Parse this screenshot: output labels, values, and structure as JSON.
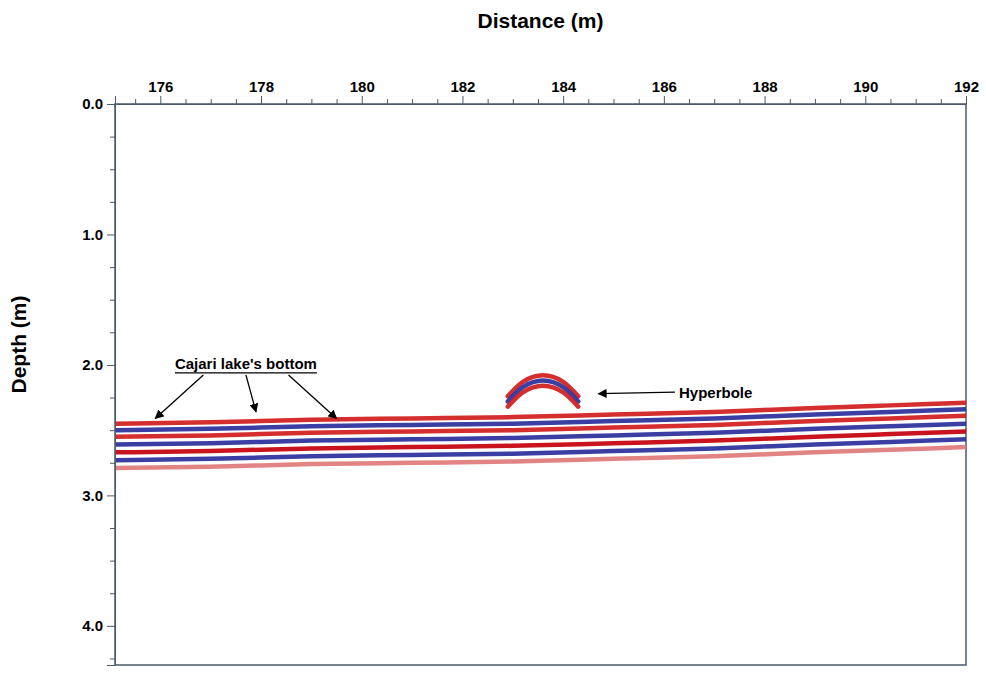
{
  "chart_data": {
    "type": "radargram",
    "xlabel": "Distance (m)",
    "ylabel": "Depth (m)",
    "xlim": [
      175.1,
      192
    ],
    "xticks": [
      176,
      178,
      180,
      182,
      184,
      186,
      188,
      190,
      192
    ],
    "xminorticks": [
      175.5,
      176.5,
      177,
      177.5,
      178.5,
      179,
      179.5,
      180.5,
      181,
      181.5,
      182.5,
      183,
      183.5,
      184.5,
      185,
      185.5,
      186.5,
      187,
      187.5,
      188.5,
      189,
      189.5,
      190.5,
      191,
      191.5
    ],
    "ylim": [
      0,
      4.3
    ],
    "yticks": [
      {
        "value": 0,
        "label": "0.0"
      },
      {
        "value": 1,
        "label": "1.0"
      },
      {
        "value": 2,
        "label": "2.0"
      },
      {
        "value": 3,
        "label": "3.0"
      },
      {
        "value": 4,
        "label": "4.0"
      }
    ],
    "yminorticks": [
      0.25,
      0.5,
      0.75,
      1.25,
      1.5,
      1.75,
      2.25,
      2.5,
      2.75,
      3.25,
      3.5,
      3.75,
      4.25
    ],
    "grid": false,
    "series": [
      {
        "color": "#d01c1c",
        "x": [
          175.1,
          177,
          179,
          181,
          183,
          185,
          187,
          189,
          190.5,
          192
        ],
        "values": [
          2.45,
          2.44,
          2.42,
          2.41,
          2.4,
          2.38,
          2.36,
          2.33,
          2.31,
          2.29
        ]
      },
      {
        "color": "#2a2f9c",
        "x": [
          175.1,
          177,
          179,
          181,
          183,
          185,
          187,
          189,
          190.5,
          192
        ],
        "values": [
          2.5,
          2.49,
          2.47,
          2.46,
          2.45,
          2.43,
          2.41,
          2.38,
          2.36,
          2.34
        ]
      },
      {
        "color": "#d01c1c",
        "x": [
          175.1,
          177,
          179,
          181,
          183,
          185,
          187,
          189,
          190.5,
          192
        ],
        "values": [
          2.55,
          2.54,
          2.52,
          2.51,
          2.5,
          2.48,
          2.46,
          2.43,
          2.41,
          2.39
        ]
      },
      {
        "color": "#2a2f9c",
        "x": [
          175.1,
          177,
          179,
          181,
          183,
          185,
          187,
          189,
          190.5,
          192
        ],
        "values": [
          2.61,
          2.6,
          2.58,
          2.57,
          2.56,
          2.54,
          2.52,
          2.49,
          2.47,
          2.45
        ]
      },
      {
        "color": "#c4000c",
        "x": [
          175.1,
          177,
          179,
          181,
          183,
          185,
          187,
          189,
          190.5,
          192
        ],
        "values": [
          2.67,
          2.66,
          2.64,
          2.63,
          2.62,
          2.6,
          2.58,
          2.55,
          2.53,
          2.51
        ]
      },
      {
        "color": "#2a2f9c",
        "x": [
          175.1,
          177,
          179,
          181,
          183,
          185,
          187,
          189,
          190.5,
          192
        ],
        "values": [
          2.73,
          2.72,
          2.7,
          2.69,
          2.68,
          2.66,
          2.64,
          2.61,
          2.59,
          2.57
        ]
      },
      {
        "color": "#e07a7a",
        "x": [
          175.1,
          177,
          179,
          181,
          183,
          185,
          187,
          189,
          190.5,
          192
        ],
        "values": [
          2.79,
          2.78,
          2.76,
          2.75,
          2.74,
          2.72,
          2.7,
          2.67,
          2.65,
          2.63
        ]
      },
      {
        "color": "#d01c1c",
        "x": [
          182.9,
          183.2,
          183.6,
          184.0,
          184.3
        ],
        "values": [
          2.24,
          2.13,
          2.08,
          2.13,
          2.24
        ]
      },
      {
        "color": "#2a2f9c",
        "x": [
          182.9,
          183.2,
          183.6,
          184.0,
          184.3
        ],
        "values": [
          2.28,
          2.17,
          2.12,
          2.17,
          2.28
        ]
      },
      {
        "color": "#d01c1c",
        "x": [
          182.9,
          183.2,
          183.6,
          184.0,
          184.3
        ],
        "values": [
          2.32,
          2.21,
          2.16,
          2.21,
          2.32
        ]
      }
    ],
    "annotations": [
      {
        "text": "Cajari lake's bottom",
        "x": 177.7,
        "y": 2.0,
        "arrows": [
          {
            "x": 175.9,
            "y": 2.41
          },
          {
            "x": 177.9,
            "y": 2.36
          },
          {
            "x": 179.5,
            "y": 2.41
          }
        ]
      },
      {
        "text": "Hyperbole",
        "x": 186.3,
        "y": 2.22,
        "arrows": [
          {
            "x": 184.7,
            "y": 2.22
          }
        ]
      }
    ]
  }
}
